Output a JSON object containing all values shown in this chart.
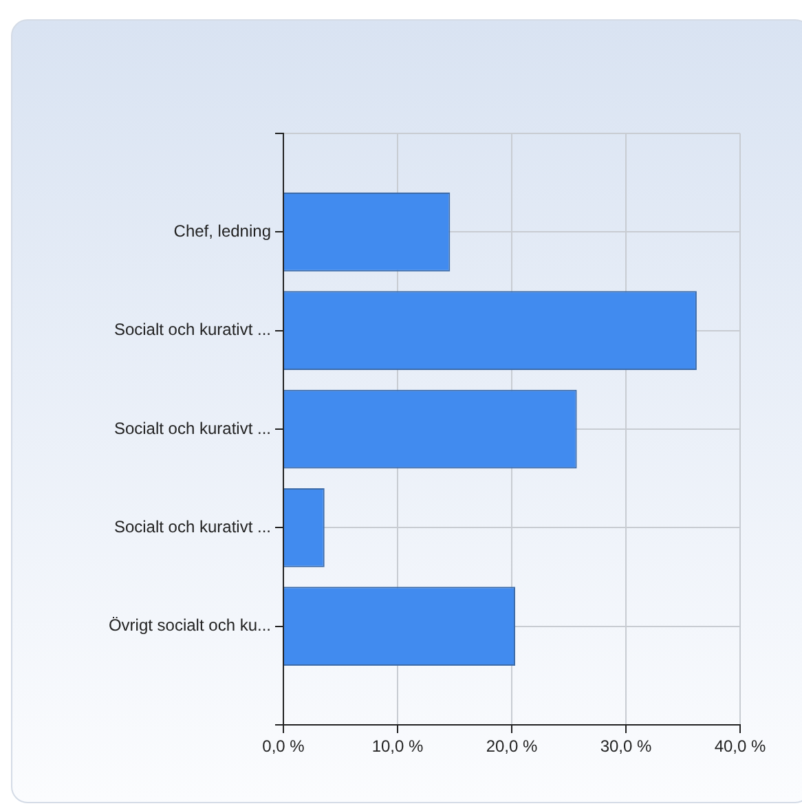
{
  "chart_data": {
    "type": "bar",
    "orientation": "horizontal",
    "categories": [
      "Chef, ledning",
      "Socialt och kurativt ...",
      "Socialt och kurativt ...",
      "Socialt och kurativt ...",
      "Övrigt socialt och ku..."
    ],
    "values": [
      14.6,
      36.2,
      25.7,
      3.6,
      20.3
    ],
    "color": "#418bef",
    "xlim": [
      0,
      40
    ],
    "xticks": [
      {
        "value": 0,
        "label": "0,0 %"
      },
      {
        "value": 10,
        "label": "10,0 %"
      },
      {
        "value": 20,
        "label": "20,0 %"
      },
      {
        "value": 30,
        "label": "30,0 %"
      },
      {
        "value": 40,
        "label": "40,0 %"
      }
    ],
    "grid": true,
    "legend": false
  }
}
